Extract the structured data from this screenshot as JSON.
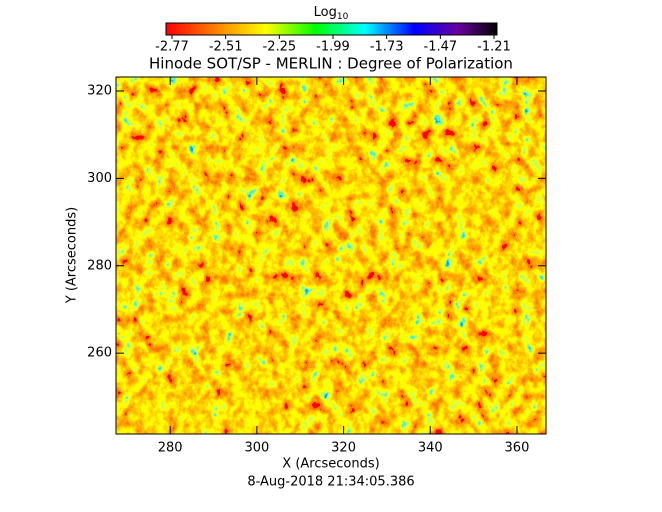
{
  "chart_data": {
    "type": "heatmap",
    "title": "Hinode SOT/SP - MERLIN : Degree of Polarization",
    "x_label": "X (Arcseconds)",
    "y_label": "Y (Arcseconds)",
    "footer": "8-Aug-2018 21:34:05.386",
    "colorbar_label": "Log",
    "colorbar_label_sub": "10",
    "clim": [
      -2.77,
      -1.21
    ],
    "cticks": [
      -2.77,
      -2.51,
      -2.25,
      -1.99,
      -1.73,
      -1.47,
      -1.21
    ],
    "xlim": [
      267.5,
      366.7
    ],
    "xticks": [
      280,
      300,
      320,
      340,
      360
    ],
    "ylim": [
      241.5,
      323.2
    ],
    "yticks": [
      260,
      280,
      300,
      320
    ]
  }
}
